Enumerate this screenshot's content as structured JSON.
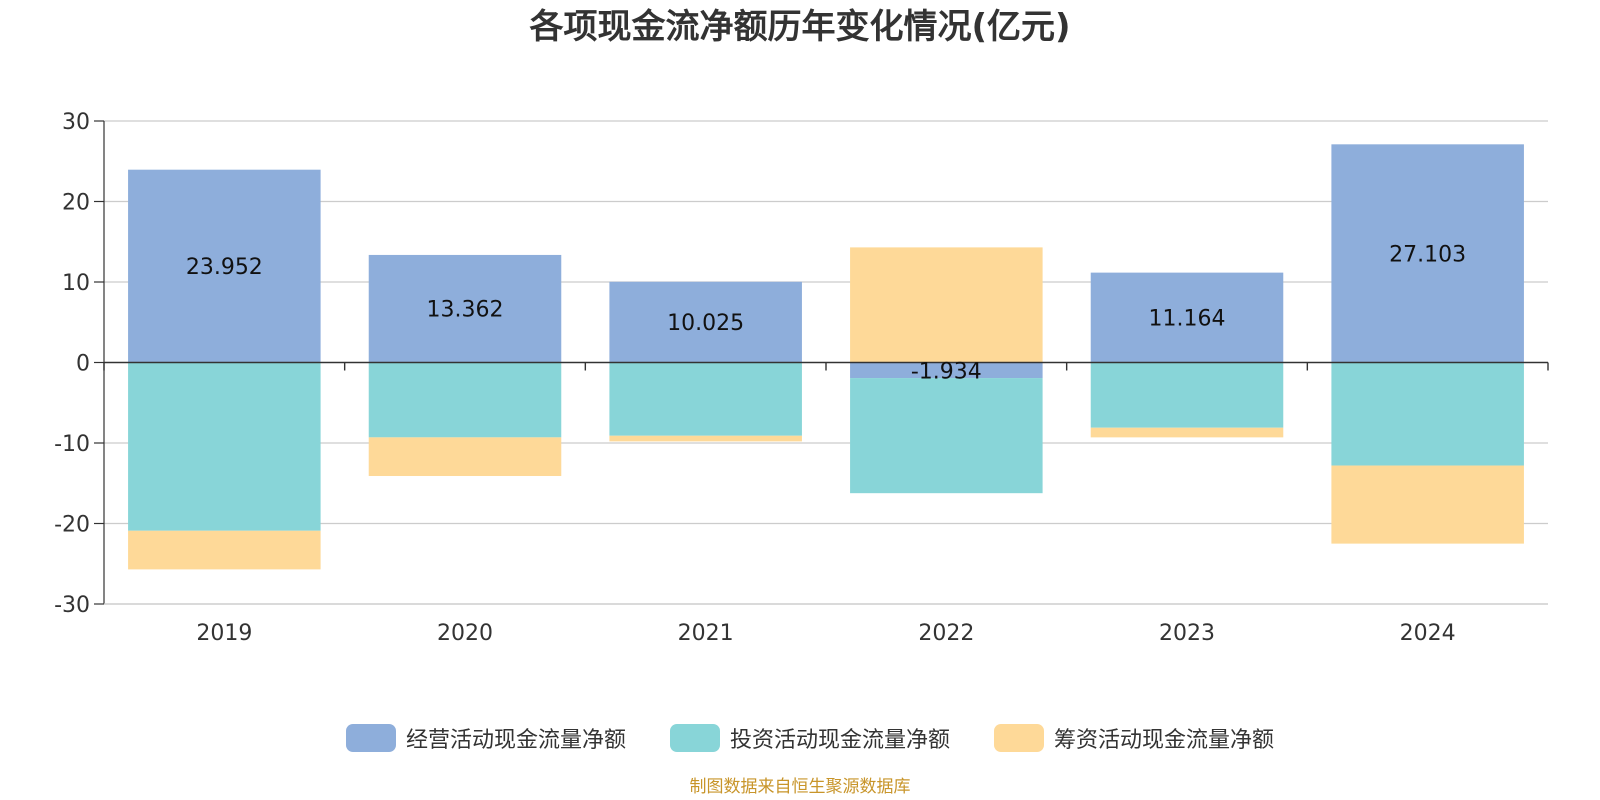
{
  "chart_data": {
    "type": "bar",
    "stacked": true,
    "title": "各项现金流净额历年变化情况(亿元)",
    "categories": [
      "2019",
      "2020",
      "2021",
      "2022",
      "2023",
      "2024"
    ],
    "series": [
      {
        "name": "经营活动现金流量净额",
        "color": "#8eaedb",
        "values": [
          23.952,
          13.362,
          10.025,
          -1.934,
          11.164,
          27.103
        ],
        "labels": [
          "23.952",
          "13.362",
          "10.025",
          "-1.934",
          "11.164",
          "27.103"
        ]
      },
      {
        "name": "投资活动现金流量净额",
        "color": "#88d5d8",
        "values": [
          -20.9,
          -9.3,
          -9.1,
          -14.3,
          -8.1,
          -12.8
        ]
      },
      {
        "name": "筹资活动现金流量净额",
        "color": "#fed998",
        "values": [
          -4.8,
          -4.8,
          -0.7,
          14.3,
          -1.2,
          -9.7
        ]
      }
    ],
    "ylim": [
      -30,
      30
    ],
    "yticks": [
      30,
      20,
      10,
      0,
      -10,
      -20,
      -30
    ],
    "ytick_labels": [
      "30",
      "20",
      "10",
      "0",
      "-10",
      "-20",
      "-30"
    ],
    "grid": true,
    "legend_position": "bottom"
  },
  "source_note": "制图数据来自恒生聚源数据库"
}
